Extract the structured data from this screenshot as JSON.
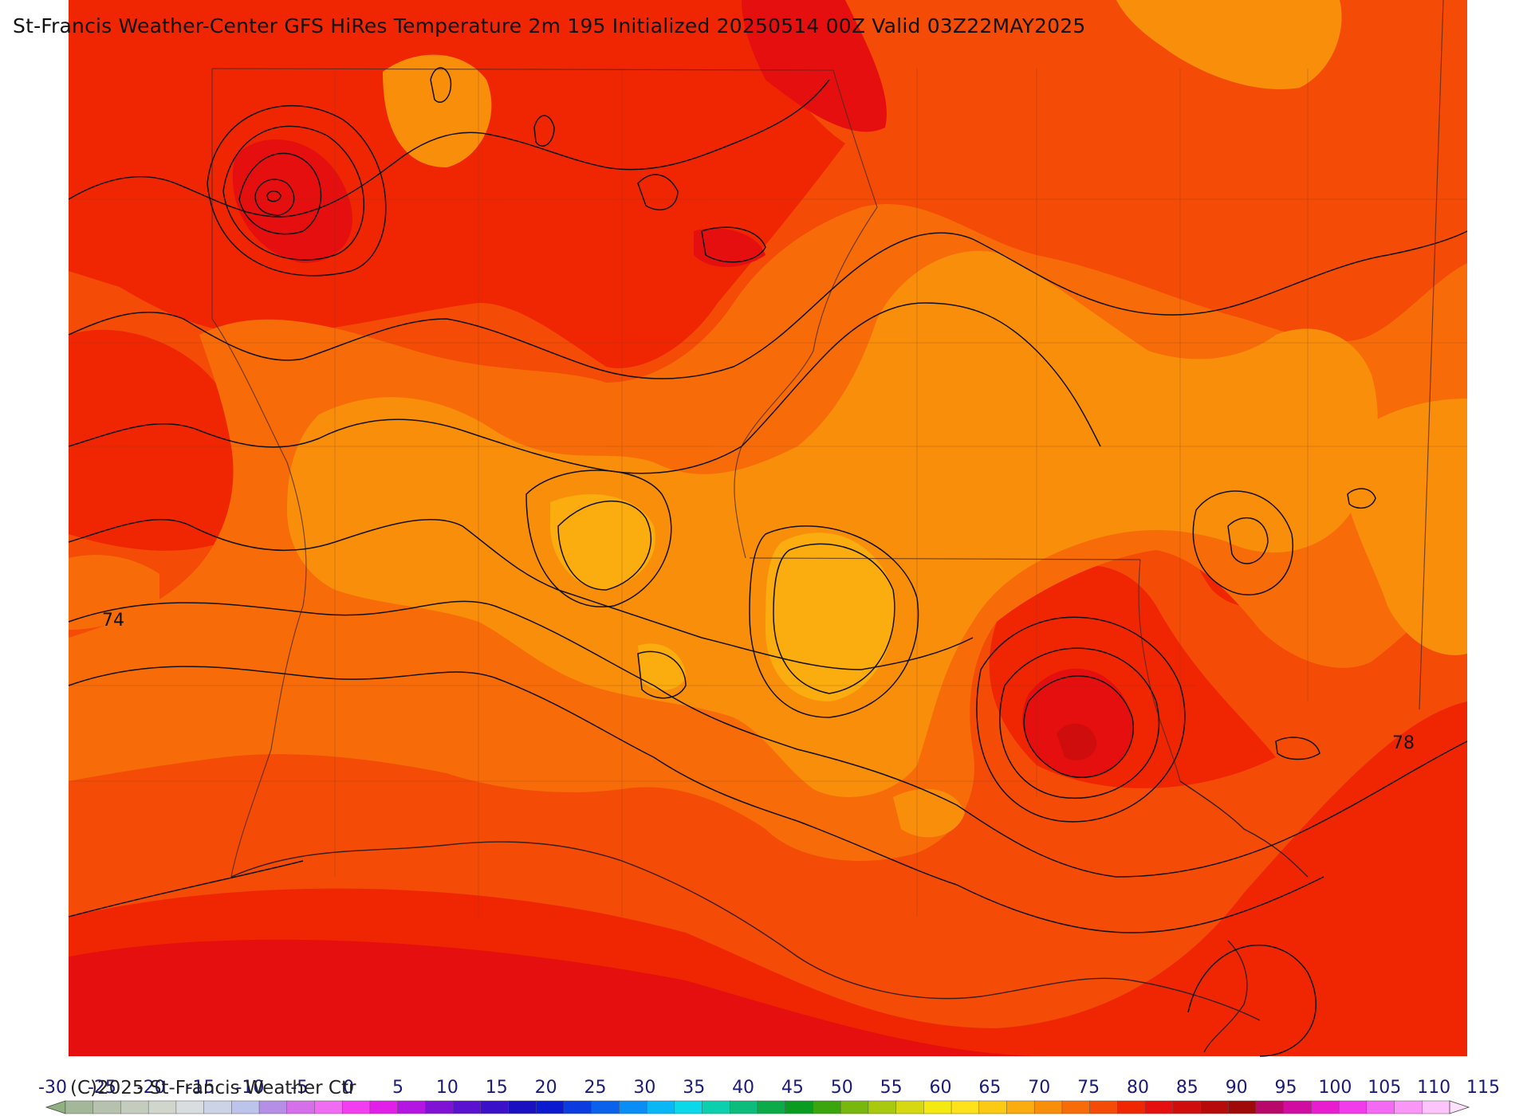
{
  "title": "St-Francis Weather-Center GFS HiRes Temperature 2m  195 Initialized 20250514 00Z Valid 03Z22MAY2025",
  "copyright": "(C)2025 St-Francis Weather Ctr",
  "contour_labels": [
    "74",
    "78"
  ],
  "colorbar": {
    "tick_labels": [
      "-30",
      "-25",
      "-20",
      "-15",
      "-10",
      "-5",
      "0",
      "5",
      "10",
      "15",
      "20",
      "25",
      "30",
      "35",
      "40",
      "45",
      "50",
      "55",
      "60",
      "65",
      "70",
      "75",
      "80",
      "85",
      "90",
      "95",
      "100",
      "105",
      "110",
      "115"
    ],
    "colors": [
      "#a3b899",
      "#b7c2ae",
      "#c4ccbd",
      "#d0d6cc",
      "#d8dde0",
      "#cdd3e6",
      "#bdc4ec",
      "#b58ee6",
      "#d670ea",
      "#f06cf0",
      "#f23ef0",
      "#e21fe8",
      "#b515e3",
      "#8012d6",
      "#5a12d0",
      "#3a11c9",
      "#1a10c2",
      "#0b1ad0",
      "#0b3ce0",
      "#0a62ec",
      "#0a8df4",
      "#0ab7f6",
      "#0bd9e9",
      "#0ccfae",
      "#0cbc7a",
      "#0bab4a",
      "#0a9c20",
      "#3aa50d",
      "#78b80e",
      "#a9c90f",
      "#d6d810",
      "#f4e910",
      "#fde21c",
      "#fcca13",
      "#fbac0e",
      "#f98e0b",
      "#f76c08",
      "#f44b06",
      "#f02603",
      "#e60f0f",
      "#d00d0d",
      "#b60b0b",
      "#a00909",
      "#b8096a",
      "#d10ca0",
      "#e81dd0",
      "#f23cec",
      "#f56af3",
      "#f996f7",
      "#fdc4fb"
    ]
  }
}
